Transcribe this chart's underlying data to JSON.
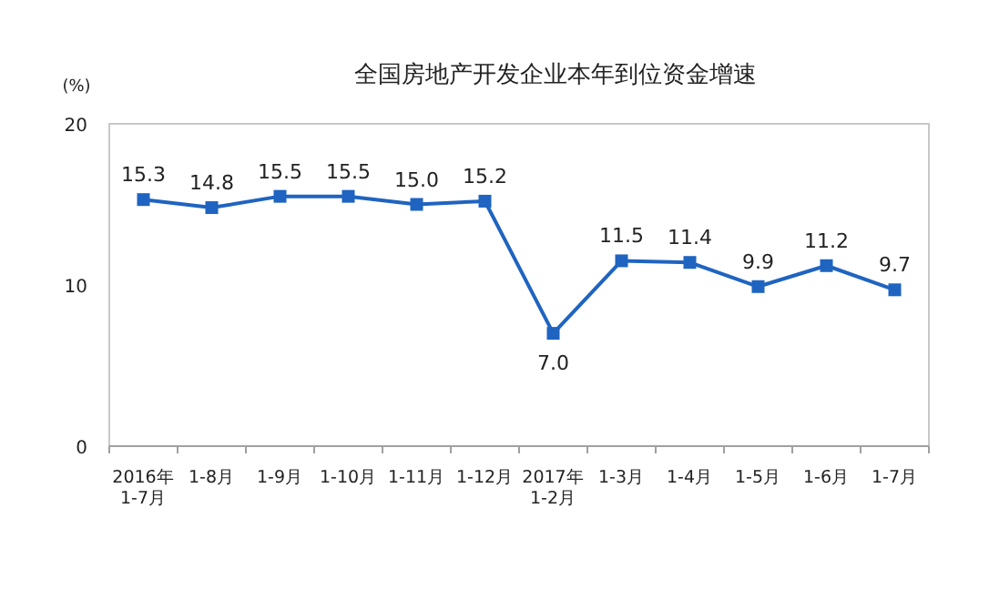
{
  "chart_data": {
    "type": "line",
    "title": "全国房地产开发企业本年到位资金增速",
    "ylabel": "(%)",
    "categories": [
      "2016年\n1-7月",
      "1-8月",
      "1-9月",
      "1-10月",
      "1-11月",
      "1-12月",
      "2017年\n1-2月",
      "1-3月",
      "1-4月",
      "1-5月",
      "1-6月",
      "1-7月"
    ],
    "series": [
      {
        "color": "#1f64c0",
        "values": [
          15.3,
          14.8,
          15.5,
          15.5,
          15.0,
          15.2,
          7.0,
          11.5,
          11.4,
          9.9,
          11.2,
          9.7
        ],
        "value_labels": [
          "15.3",
          "14.8",
          "15.5",
          "15.5",
          "15.0",
          "15.2",
          "7.0",
          "11.5",
          "11.4",
          "9.9",
          "11.2",
          "9.7"
        ]
      }
    ],
    "ylim": [
      0,
      20
    ],
    "yticks": [
      0,
      10,
      20
    ],
    "grid": false,
    "marker": "square",
    "line_style": "solid"
  }
}
